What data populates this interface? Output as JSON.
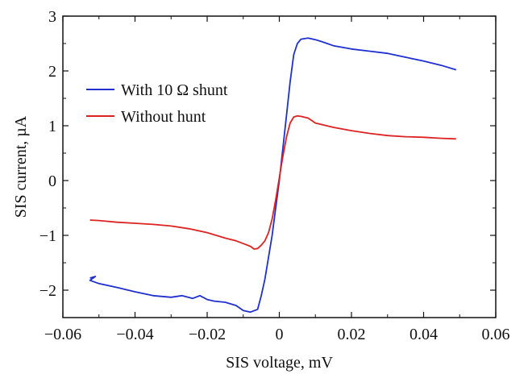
{
  "chart_data": {
    "type": "line",
    "xlabel": "SIS voltage, mV",
    "ylabel": "SIS current, µA",
    "xlim": [
      -0.06,
      0.06
    ],
    "ylim": [
      -2.5,
      3
    ],
    "xticks": [
      -0.06,
      -0.04,
      -0.02,
      0,
      0.02,
      0.04,
      0.06
    ],
    "xtick_labels": [
      "−0.06",
      "−0.04",
      "−0.02",
      "0",
      "0.02",
      "0.04",
      "0.06"
    ],
    "yticks": [
      -2,
      -1,
      0,
      1,
      2,
      3
    ],
    "ytick_labels": [
      "−2",
      "−1",
      "0",
      "1",
      "2",
      "3"
    ],
    "grid": false,
    "legend": "upper-left",
    "series": [
      {
        "name": "With 10 Ω shunt",
        "color": "#1f2fd0",
        "x": [
          -0.0525,
          -0.051,
          -0.0525,
          -0.05,
          -0.045,
          -0.04,
          -0.035,
          -0.03,
          -0.027,
          -0.024,
          -0.022,
          -0.02,
          -0.018,
          -0.015,
          -0.012,
          -0.01,
          -0.008,
          -0.006,
          -0.005,
          -0.004,
          -0.003,
          -0.002,
          -0.001,
          0,
          0.001,
          0.002,
          0.003,
          0.004,
          0.005,
          0.006,
          0.008,
          0.01,
          0.012,
          0.015,
          0.02,
          0.025,
          0.03,
          0.035,
          0.04,
          0.045,
          0.049
        ],
        "y": [
          -1.78,
          -1.75,
          -1.82,
          -1.88,
          -1.95,
          -2.03,
          -2.1,
          -2.13,
          -2.1,
          -2.15,
          -2.1,
          -2.17,
          -2.2,
          -2.22,
          -2.28,
          -2.37,
          -2.4,
          -2.35,
          -2.1,
          -1.8,
          -1.4,
          -1.0,
          -0.5,
          0.0,
          0.6,
          1.2,
          1.8,
          2.3,
          2.5,
          2.58,
          2.6,
          2.57,
          2.53,
          2.46,
          2.4,
          2.36,
          2.32,
          2.25,
          2.18,
          2.1,
          2.02
        ]
      },
      {
        "name": "Without hunt",
        "color": "#dd2222",
        "x": [
          -0.0525,
          -0.05,
          -0.045,
          -0.04,
          -0.035,
          -0.03,
          -0.025,
          -0.02,
          -0.015,
          -0.012,
          -0.01,
          -0.008,
          -0.007,
          -0.006,
          -0.005,
          -0.004,
          -0.003,
          -0.002,
          -0.001,
          0,
          0.001,
          0.002,
          0.003,
          0.004,
          0.005,
          0.006,
          0.008,
          0.01,
          0.015,
          0.02,
          0.025,
          0.03,
          0.035,
          0.04,
          0.045,
          0.049
        ],
        "y": [
          -0.72,
          -0.73,
          -0.76,
          -0.78,
          -0.8,
          -0.83,
          -0.88,
          -0.95,
          -1.05,
          -1.1,
          -1.15,
          -1.2,
          -1.25,
          -1.24,
          -1.18,
          -1.1,
          -0.95,
          -0.7,
          -0.35,
          0.05,
          0.45,
          0.8,
          1.05,
          1.16,
          1.18,
          1.17,
          1.14,
          1.05,
          0.97,
          0.91,
          0.86,
          0.82,
          0.8,
          0.79,
          0.77,
          0.76
        ]
      }
    ]
  }
}
